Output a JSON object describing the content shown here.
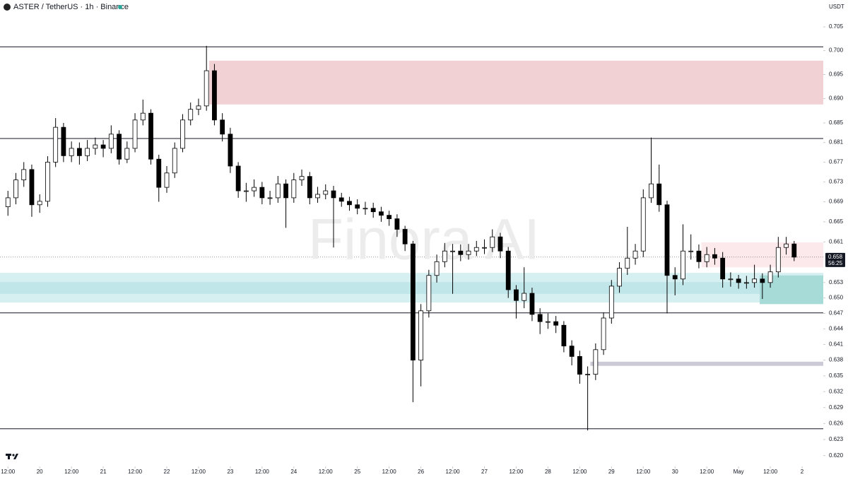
{
  "chart_data": {
    "type": "candlestick",
    "title": "ASTER / TetherUS · 1h · Binance",
    "currency": "USDT",
    "watermark": "Finora AI",
    "log": true,
    "xlim": [
      9,
      320
    ],
    "ylim": [
      0.618,
      0.7107
    ],
    "xticks": [
      {
        "value": 12,
        "label": "12:00"
      },
      {
        "value": 24,
        "label": "20"
      },
      {
        "value": 36,
        "label": "12:00"
      },
      {
        "value": 48,
        "label": "21"
      },
      {
        "value": 60,
        "label": "12:00"
      },
      {
        "value": 72,
        "label": "22"
      },
      {
        "value": 84,
        "label": "12:00"
      },
      {
        "value": 96,
        "label": "23"
      },
      {
        "value": 108,
        "label": "12:00"
      },
      {
        "value": 120,
        "label": "24"
      },
      {
        "value": 132,
        "label": "12:00"
      },
      {
        "value": 144,
        "label": "25"
      },
      {
        "value": 156,
        "label": "12:00"
      },
      {
        "value": 168,
        "label": "26"
      },
      {
        "value": 180,
        "label": "12:00"
      },
      {
        "value": 192,
        "label": "27"
      },
      {
        "value": 204,
        "label": "12:00"
      },
      {
        "value": 216,
        "label": "28"
      },
      {
        "value": 228,
        "label": "12:00"
      },
      {
        "value": 240,
        "label": "29"
      },
      {
        "value": 252,
        "label": "12:00"
      },
      {
        "value": 264,
        "label": "30"
      },
      {
        "value": 276,
        "label": "12:00"
      },
      {
        "value": 288,
        "label": "May"
      },
      {
        "value": 300,
        "label": "12:00"
      },
      {
        "value": 312,
        "label": "2"
      }
    ],
    "yticks": [
      0.705,
      {
        "value": 0.7,
        "label": "0.700"
      },
      0.695,
      {
        "value": 0.69,
        "label": "0.690"
      },
      0.685,
      0.681,
      0.677,
      0.673,
      0.669,
      0.665,
      0.661,
      0.653,
      {
        "value": 0.65,
        "label": "0.650"
      },
      0.647,
      0.644,
      0.641,
      0.638,
      0.635,
      0.632,
      0.629,
      0.626,
      0.623,
      {
        "value": 0.62,
        "label": "0.620"
      }
    ],
    "up_color": "#ffffff",
    "down_color": "#000000",
    "border_color": "#000000",
    "x": [
      12,
      15,
      18,
      21,
      24,
      27,
      30,
      33,
      36,
      39,
      42,
      45,
      48,
      51,
      54,
      57,
      60,
      63,
      66,
      69,
      72,
      75,
      78,
      81,
      84,
      87,
      90,
      93,
      96,
      99,
      102,
      105,
      108,
      111,
      114,
      117,
      120,
      123,
      126,
      129,
      132,
      135,
      138,
      141,
      144,
      147,
      150,
      153,
      156,
      159,
      162,
      165,
      168,
      171,
      174,
      177,
      180,
      183,
      186,
      189,
      192,
      195,
      198,
      201,
      204,
      207,
      210,
      213,
      216,
      219,
      222,
      225,
      228,
      231,
      234,
      237,
      240,
      243,
      246,
      249,
      252,
      255,
      258,
      261,
      264,
      267,
      270,
      273,
      276,
      279,
      282,
      285,
      288,
      291,
      294,
      297,
      300,
      303,
      306,
      309
    ],
    "open": [
      0.668,
      0.6698,
      0.6734,
      0.6755,
      0.6684,
      0.6691,
      0.677,
      0.6841,
      0.6783,
      0.6798,
      0.6783,
      0.6798,
      0.6805,
      0.6798,
      0.6827,
      0.6776,
      0.6798,
      0.6856,
      0.687,
      0.6776,
      0.6719,
      0.6748,
      0.6798,
      0.6856,
      0.6878,
      0.6885,
      0.6958,
      0.6856,
      0.6827,
      0.6762,
      0.6712,
      0.6712,
      0.6719,
      0.6698,
      0.6698,
      0.6726,
      0.6698,
      0.6734,
      0.6741,
      0.6698,
      0.6705,
      0.6712,
      0.6698,
      0.6691,
      0.6684,
      0.6677,
      0.6677,
      0.667,
      0.6663,
      0.6656,
      0.6635,
      0.6606,
      0.638,
      0.6475,
      0.6544,
      0.6571,
      0.6592,
      0.6592,
      0.6585,
      0.6592,
      0.6599,
      0.6599,
      0.662,
      0.6592,
      0.6516,
      0.6495,
      0.6509,
      0.6468,
      0.6454,
      0.6454,
      0.6447,
      0.6407,
      0.6387,
      0.6353,
      0.6353,
      0.64,
      0.6461,
      0.6523,
      0.6558,
      0.6578,
      0.6592,
      0.6698,
      0.6726,
      0.6684,
      0.6544,
      0.6537,
      0.6592,
      0.6592,
      0.6571,
      0.6585,
      0.6578,
      0.6537,
      0.6537,
      0.653,
      0.653,
      0.6537,
      0.653,
      0.6551,
      0.6599,
      0.6606
    ],
    "high": [
      0.6712,
      0.6748,
      0.677,
      0.6765,
      0.6705,
      0.6782,
      0.686,
      0.685,
      0.6812,
      0.681,
      0.6815,
      0.682,
      0.6815,
      0.6845,
      0.6835,
      0.6812,
      0.687,
      0.6898,
      0.6878,
      0.6785,
      0.6762,
      0.681,
      0.6868,
      0.6892,
      0.69,
      0.701,
      0.6972,
      0.687,
      0.684,
      0.677,
      0.6728,
      0.6735,
      0.673,
      0.6712,
      0.6742,
      0.6735,
      0.6748,
      0.6755,
      0.675,
      0.672,
      0.6725,
      0.6722,
      0.6708,
      0.67,
      0.6695,
      0.669,
      0.6688,
      0.668,
      0.6672,
      0.6665,
      0.6642,
      0.6612,
      0.6488,
      0.6555,
      0.6585,
      0.6608,
      0.6606,
      0.6605,
      0.6606,
      0.6612,
      0.6615,
      0.6635,
      0.6628,
      0.66,
      0.6525,
      0.656,
      0.652,
      0.648,
      0.647,
      0.6465,
      0.6455,
      0.6418,
      0.6398,
      0.6368,
      0.6412,
      0.6472,
      0.6535,
      0.657,
      0.664,
      0.6606,
      0.6715,
      0.682,
      0.6765,
      0.6692,
      0.656,
      0.6645,
      0.6625,
      0.6605,
      0.66,
      0.6598,
      0.659,
      0.655,
      0.6545,
      0.6543,
      0.6565,
      0.6548,
      0.6565,
      0.662,
      0.662,
      0.6612
    ],
    "low": [
      0.6662,
      0.6685,
      0.672,
      0.666,
      0.6668,
      0.668,
      0.676,
      0.677,
      0.677,
      0.6765,
      0.6772,
      0.6785,
      0.678,
      0.6788,
      0.6765,
      0.6768,
      0.679,
      0.6845,
      0.6765,
      0.669,
      0.6708,
      0.6738,
      0.679,
      0.6845,
      0.6866,
      0.6875,
      0.6845,
      0.6812,
      0.6748,
      0.6698,
      0.669,
      0.67,
      0.6685,
      0.6684,
      0.6688,
      0.6638,
      0.6688,
      0.6722,
      0.6685,
      0.6688,
      0.6695,
      0.6599,
      0.668,
      0.6672,
      0.6665,
      0.6664,
      0.6658,
      0.665,
      0.6642,
      0.662,
      0.6592,
      0.63,
      0.633,
      0.6462,
      0.653,
      0.656,
      0.6508,
      0.6572,
      0.6575,
      0.6582,
      0.6586,
      0.659,
      0.6578,
      0.65,
      0.646,
      0.648,
      0.6455,
      0.643,
      0.644,
      0.6432,
      0.6395,
      0.637,
      0.6335,
      0.6247,
      0.6342,
      0.639,
      0.645,
      0.651,
      0.6545,
      0.6565,
      0.658,
      0.6688,
      0.667,
      0.647,
      0.6505,
      0.6525,
      0.6575,
      0.6558,
      0.656,
      0.6565,
      0.652,
      0.6522,
      0.6518,
      0.6518,
      0.652,
      0.6498,
      0.652,
      0.654,
      0.6585,
      0.6572
    ],
    "close": [
      0.6698,
      0.6734,
      0.6755,
      0.6684,
      0.6691,
      0.677,
      0.6841,
      0.6783,
      0.6798,
      0.6783,
      0.6798,
      0.6805,
      0.6798,
      0.6827,
      0.6776,
      0.6798,
      0.6856,
      0.687,
      0.6776,
      0.6719,
      0.6748,
      0.6798,
      0.6856,
      0.6878,
      0.6885,
      0.6958,
      0.6856,
      0.6827,
      0.6762,
      0.6712,
      0.6712,
      0.6719,
      0.6698,
      0.6698,
      0.6726,
      0.6698,
      0.6734,
      0.6741,
      0.6698,
      0.6705,
      0.6712,
      0.6698,
      0.6691,
      0.6684,
      0.6677,
      0.6677,
      0.667,
      0.6663,
      0.6656,
      0.6635,
      0.6606,
      0.638,
      0.6475,
      0.6544,
      0.6571,
      0.6592,
      0.6592,
      0.6585,
      0.6592,
      0.6599,
      0.6599,
      0.662,
      0.6592,
      0.6516,
      0.6495,
      0.6509,
      0.6468,
      0.6454,
      0.6454,
      0.6447,
      0.6407,
      0.6387,
      0.6353,
      0.6353,
      0.64,
      0.6461,
      0.6523,
      0.6558,
      0.6578,
      0.6592,
      0.6698,
      0.6726,
      0.6684,
      0.6544,
      0.6537,
      0.6592,
      0.6592,
      0.6571,
      0.6585,
      0.6578,
      0.6537,
      0.6537,
      0.653,
      0.653,
      0.6537,
      0.653,
      0.6551,
      0.6599,
      0.6606,
      0.658
    ],
    "hlines": [
      0.7008,
      0.6818,
      0.6471,
      0.625
    ],
    "zones": [
      {
        "from": 88,
        "top": 0.6979,
        "bottom": 0.6888,
        "color": "#f2d1d4"
      },
      {
        "from": 9,
        "top": 0.6549,
        "bottom": 0.6491,
        "color": "#d6eff1"
      },
      {
        "from": 9,
        "top": 0.6531,
        "bottom": 0.6508,
        "color": "#c0e6e9"
      },
      {
        "from": 274,
        "top": 0.6609,
        "bottom": 0.656,
        "color": "#fce9eb"
      },
      {
        "from": 296,
        "top": 0.6544,
        "bottom": 0.6488,
        "color": "#a6dbd8"
      },
      {
        "from": 232,
        "top": 0.6377,
        "bottom": 0.6369,
        "color": "#cbcad6"
      }
    ],
    "last_price": 0.658,
    "countdown": "56:25"
  }
}
